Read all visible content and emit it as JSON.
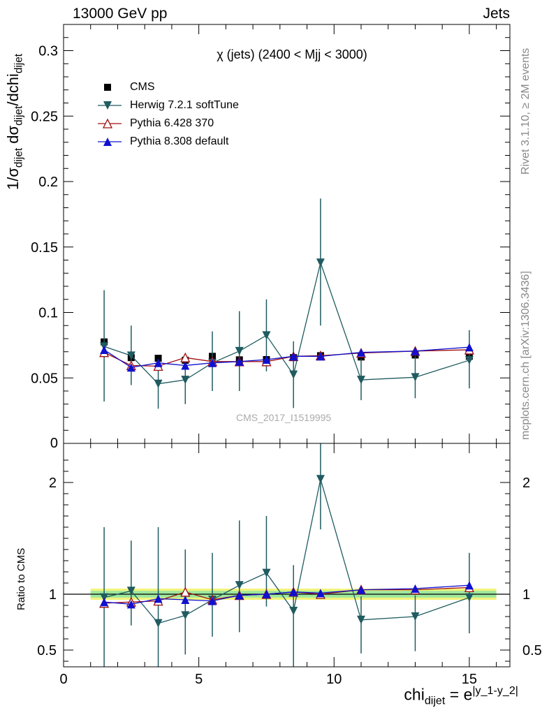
{
  "header": {
    "left": "13000 GeV pp",
    "right": "Jets"
  },
  "side_labels": {
    "rivet": "Rivet 3.1.10, ≥ 2M events",
    "mcplots": "mcplots.cern.ch [arXiv:1306.3436]"
  },
  "chart_data": [
    {
      "type": "scatter",
      "panel": "main",
      "title": "χ (jets) (2400 < Mjj < 3000)",
      "watermark": "CMS_2017_I1519995",
      "ylabel_parts": {
        "a": "1/σ",
        "a_sub": "dijet",
        "b": " dσ",
        "b_sub": "dijet",
        "c": "/dchi",
        "c_sub": "dijet"
      },
      "xlim": [
        0,
        16.5
      ],
      "ylim": [
        0,
        0.32
      ],
      "yticks": [
        0.05,
        0.1,
        0.15,
        0.2,
        0.25,
        0.3
      ],
      "ytick_labels": [
        "0.05",
        "0.1",
        "0.15",
        "0.2",
        "0.25",
        "0.3"
      ],
      "y_bottom_label": "0",
      "legend_position": "top-left",
      "series": [
        {
          "name": "CMS",
          "color": "#000000",
          "marker": "square",
          "x": [
            1.5,
            2.5,
            3.5,
            4.5,
            5.5,
            6.5,
            7.5,
            8.5,
            9.5,
            11,
            13,
            15
          ],
          "y": [
            0.0775,
            0.0655,
            0.065,
            0.0635,
            0.0665,
            0.0638,
            0.064,
            0.0655,
            0.067,
            0.066,
            0.0675,
            0.0665
          ]
        },
        {
          "name": "Herwig 7.2.1 softTune",
          "color": "#1f5b60",
          "marker": "triangle-down",
          "x": [
            1.5,
            2.5,
            3.5,
            4.5,
            5.5,
            6.5,
            7.5,
            8.5,
            9.5,
            11,
            13,
            15
          ],
          "y": [
            0.074,
            0.067,
            0.0455,
            0.0485,
            0.0615,
            0.0705,
            0.0825,
            0.0525,
            0.138,
            0.0485,
            0.0505,
            0.0635
          ],
          "err_low": [
            0.0745,
            0.0645,
            0.0455,
            0.0485,
            0.0615,
            0.0705,
            0.0825,
            0.0525,
            0.138,
            0.0485,
            0.0505,
            0.0635
          ],
          "err_high": [
            0.0745,
            0.0645,
            0.0455,
            0.0485,
            0.0615,
            0.0705,
            0.0825,
            0.0525,
            0.138,
            0.0485,
            0.0505,
            0.0635
          ],
          "err_lo_vals": [
            0.032,
            0.0445,
            0.0265,
            0.03,
            0.04,
            0.04,
            0.055,
            0.027,
            0.09,
            0.033,
            0.0345,
            0.042
          ],
          "err_hi_vals": [
            0.117,
            0.09,
            0.0645,
            0.068,
            0.0855,
            0.101,
            0.11,
            0.078,
            0.187,
            0.0645,
            0.0665,
            0.0865
          ]
        },
        {
          "name": "Pythia 6.428 370",
          "color": "#a01010",
          "marker": "triangle-up-open",
          "x": [
            1.5,
            2.5,
            3.5,
            4.5,
            5.5,
            6.5,
            7.5,
            8.5,
            9.5,
            11,
            13,
            15
          ],
          "y": [
            0.0695,
            0.0595,
            0.059,
            0.0655,
            0.0625,
            0.0625,
            0.0625,
            0.0665,
            0.067,
            0.069,
            0.0705,
            0.0715
          ]
        },
        {
          "name": "Pythia 8.308 default",
          "color": "#1010d0",
          "marker": "triangle-up",
          "x": [
            1.5,
            2.5,
            3.5,
            4.5,
            5.5,
            6.5,
            7.5,
            8.5,
            9.5,
            11,
            13,
            15
          ],
          "y": [
            0.0715,
            0.058,
            0.0615,
            0.0595,
            0.0615,
            0.0625,
            0.064,
            0.0665,
            0.0665,
            0.0695,
            0.0705,
            0.0735
          ]
        }
      ]
    },
    {
      "type": "scatter",
      "panel": "ratio",
      "ylabel": "Ratio to CMS",
      "xlabel_parts": {
        "a": "chi",
        "a_sub": "dijet",
        "b": " = e",
        "b_sup": "|y_1-y_2|"
      },
      "xlim": [
        0,
        16.5
      ],
      "ylim": [
        0.35,
        2.35
      ],
      "xticks": [
        0,
        5,
        10,
        15
      ],
      "xtick_labels": [
        "0",
        "5",
        "10",
        "15"
      ],
      "yticks": [
        0.5,
        1,
        2
      ],
      "ytick_labels": [
        "0.5",
        "1",
        "2"
      ],
      "band": {
        "x_range": [
          1,
          16
        ],
        "yellow": [
          0.95,
          1.05
        ],
        "green": [
          0.97,
          1.03
        ]
      },
      "series": [
        {
          "name": "Herwig 7.2.1 softTune",
          "color": "#1f5b60",
          "marker": "triangle-down",
          "x": [
            1.5,
            2.5,
            3.5,
            4.5,
            5.5,
            6.5,
            7.5,
            8.5,
            9.5,
            11,
            13,
            15
          ],
          "y": [
            0.97,
            1.03,
            0.74,
            0.81,
            0.95,
            1.08,
            1.19,
            0.85,
            2.03,
            0.77,
            0.8,
            0.97
          ],
          "err_lo_vals": [
            0.35,
            0.72,
            0.35,
            0.46,
            0.62,
            0.66,
            0.89,
            0.35,
            1.58,
            0.47,
            0.49,
            0.65
          ],
          "err_hi_vals": [
            1.6,
            1.48,
            1.6,
            1.4,
            1.37,
            1.66,
            1.7,
            1.26,
            2.35,
            0.98,
            0.99,
            1.37
          ]
        },
        {
          "name": "Pythia 6.428 370",
          "color": "#a01010",
          "marker": "triangle-up-open",
          "x": [
            1.5,
            2.5,
            3.5,
            4.5,
            5.5,
            6.5,
            7.5,
            8.5,
            9.5,
            11,
            13,
            15
          ],
          "y": [
            0.92,
            0.93,
            0.94,
            1.02,
            0.95,
            0.99,
            1.0,
            1.02,
            1.0,
            1.04,
            1.04,
            1.06
          ]
        },
        {
          "name": "Pythia 8.308 default",
          "color": "#1010d0",
          "marker": "triangle-up",
          "x": [
            1.5,
            2.5,
            3.5,
            4.5,
            5.5,
            6.5,
            7.5,
            8.5,
            9.5,
            11,
            13,
            15
          ],
          "y": [
            0.93,
            0.91,
            0.96,
            0.95,
            0.94,
            0.99,
            1.0,
            1.02,
            1.01,
            1.04,
            1.05,
            1.08
          ]
        }
      ]
    }
  ]
}
